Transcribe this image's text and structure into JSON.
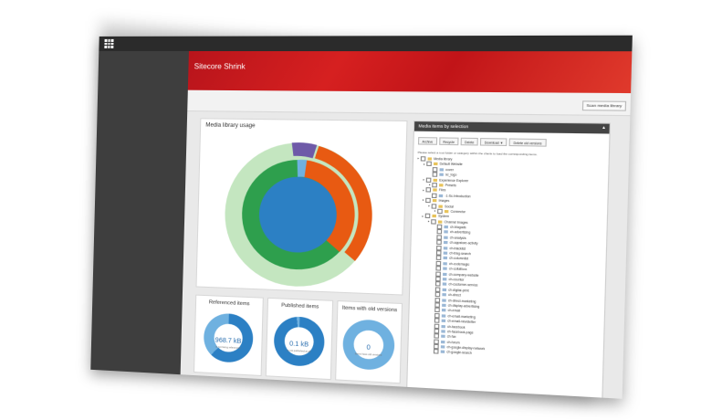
{
  "app": {
    "title": "Sitecore Shrink",
    "toolbar_button": "Scan media library"
  },
  "colors": {
    "header": "#c8171d",
    "blue": "#2c80c4",
    "light_blue": "#6fb1e0",
    "green": "#2e9f4d",
    "light_green": "#b6dfb2",
    "orange": "#e85a12",
    "purple": "#6e5aa8"
  },
  "library": {
    "title": "Media library usage"
  },
  "cards": [
    {
      "title": "Referenced items",
      "value": "968.7 kB",
      "subtitle": "is not being referenced",
      "fraction": 0.62
    },
    {
      "title": "Published items",
      "value": "0.1 kB",
      "subtitle": "is not published at all",
      "fraction": 0.02
    },
    {
      "title": "Items with old versions",
      "value": "0",
      "subtitle": "Items have old versions",
      "fraction": 0.0
    }
  ],
  "selection": {
    "title": "Media items by selection",
    "buttons": [
      "Archive",
      "Recycle",
      "Delete",
      "Download ▼",
      "Delete old versions"
    ],
    "hint": "Please select a root folder or category within the charts to load the corresponding items.",
    "tree": [
      {
        "label": "Media library",
        "indent": 0,
        "type": "folder"
      },
      {
        "label": "Default Website",
        "indent": 1,
        "type": "folder"
      },
      {
        "label": "cover",
        "indent": 2,
        "type": "item"
      },
      {
        "label": "sc_logo",
        "indent": 2,
        "type": "item"
      },
      {
        "label": "Experience Explorer",
        "indent": 1,
        "type": "folder"
      },
      {
        "label": "Presets",
        "indent": 2,
        "type": "folder"
      },
      {
        "label": "Files",
        "indent": 1,
        "type": "folder"
      },
      {
        "label": "-1-Sc-Introduction",
        "indent": 2,
        "type": "item"
      },
      {
        "label": "Images",
        "indent": 1,
        "type": "folder"
      },
      {
        "label": "Social",
        "indent": 2,
        "type": "folder"
      },
      {
        "label": "Connector",
        "indent": 3,
        "type": "folder"
      },
      {
        "label": "System",
        "indent": 1,
        "type": "folder"
      },
      {
        "label": "Channel Images",
        "indent": 2,
        "type": "folder"
      },
      {
        "label": "ch-blogads",
        "indent": 3,
        "type": "item"
      },
      {
        "label": "ch-advertising",
        "indent": 3,
        "type": "item"
      },
      {
        "label": "ch-analysis",
        "indent": 3,
        "type": "item"
      },
      {
        "label": "ch-appstore-activity",
        "indent": 3,
        "type": "item"
      },
      {
        "label": "ch-blacklist",
        "indent": 3,
        "type": "item"
      },
      {
        "label": "ch-blog-search",
        "indent": 3,
        "type": "item"
      },
      {
        "label": "ch-columnlist",
        "indent": 3,
        "type": "item"
      },
      {
        "label": "ch-codemagic",
        "indent": 3,
        "type": "item"
      },
      {
        "label": "ch-collabora",
        "indent": 3,
        "type": "item"
      },
      {
        "label": "ch-company-website",
        "indent": 3,
        "type": "item"
      },
      {
        "label": "ch-counter",
        "indent": 3,
        "type": "item"
      },
      {
        "label": "ch-customer-service",
        "indent": 3,
        "type": "item"
      },
      {
        "label": "ch-digital-print",
        "indent": 3,
        "type": "item"
      },
      {
        "label": "ch-direct",
        "indent": 3,
        "type": "item"
      },
      {
        "label": "ch-direct-marketing",
        "indent": 3,
        "type": "item"
      },
      {
        "label": "ch-display-advertising",
        "indent": 3,
        "type": "item"
      },
      {
        "label": "ch-email",
        "indent": 3,
        "type": "item"
      },
      {
        "label": "ch-email-marketing",
        "indent": 3,
        "type": "item"
      },
      {
        "label": "ch-email-newsletter",
        "indent": 3,
        "type": "item"
      },
      {
        "label": "ch-facebook",
        "indent": 3,
        "type": "item"
      },
      {
        "label": "ch-facebook-page",
        "indent": 3,
        "type": "item"
      },
      {
        "label": "ch-fax",
        "indent": 3,
        "type": "item"
      },
      {
        "label": "ch-forum",
        "indent": 3,
        "type": "item"
      },
      {
        "label": "ch-google-display-network",
        "indent": 3,
        "type": "item"
      },
      {
        "label": "ch-google-search",
        "indent": 3,
        "type": "item"
      }
    ]
  }
}
